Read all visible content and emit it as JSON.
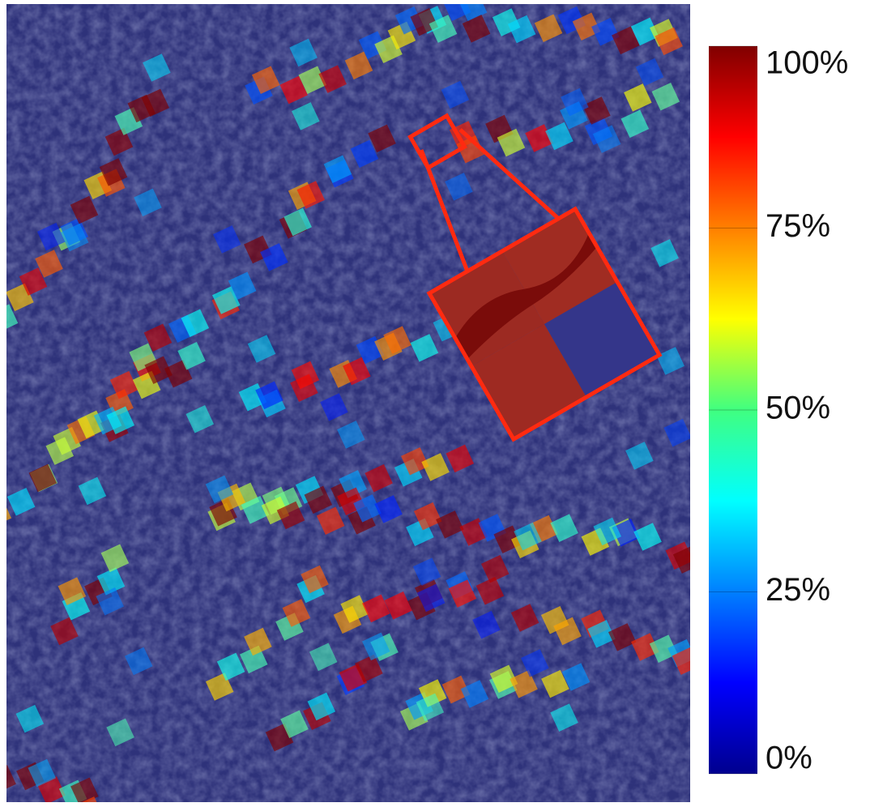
{
  "colorbar": {
    "range": [
      0,
      100
    ],
    "ticks": [
      {
        "value": 0,
        "label": "0%"
      },
      {
        "value": 25,
        "label": "25%"
      },
      {
        "value": 50,
        "label": "50%"
      },
      {
        "value": 75,
        "label": "75%"
      },
      {
        "value": 100,
        "label": "100%"
      }
    ]
  }
}
